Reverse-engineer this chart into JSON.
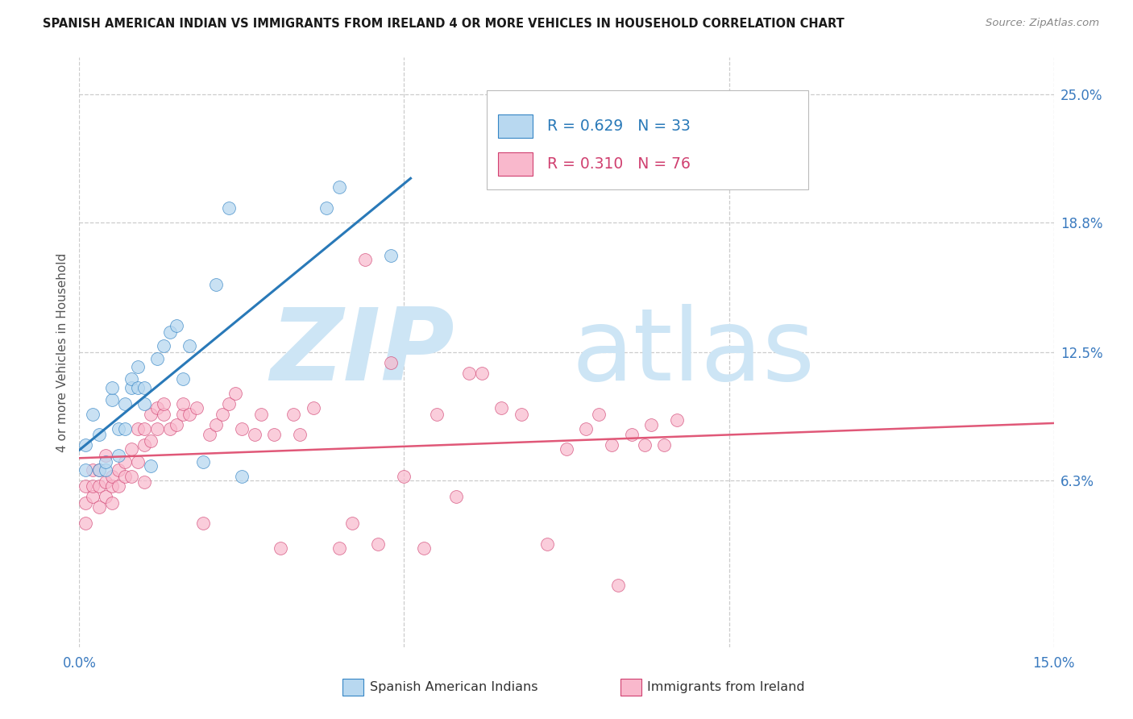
{
  "title": "SPANISH AMERICAN INDIAN VS IMMIGRANTS FROM IRELAND 4 OR MORE VEHICLES IN HOUSEHOLD CORRELATION CHART",
  "source": "Source: ZipAtlas.com",
  "ylabel": "4 or more Vehicles in Household",
  "legend_label1": "Spanish American Indians",
  "legend_label2": "Immigrants from Ireland",
  "R1": "0.629",
  "N1": "33",
  "R2": "0.310",
  "N2": "76",
  "xmin": 0.0,
  "xmax": 0.15,
  "ymin": -0.018,
  "ymax": 0.268,
  "color_blue_fill": "#b8d8f0",
  "color_blue_edge": "#3585c5",
  "color_pink_fill": "#f9b8cc",
  "color_pink_edge": "#d04070",
  "color_blue_line": "#2979b8",
  "color_pink_line": "#e05878",
  "watermark_zip_color": "#cde5f5",
  "watermark_atlas_color": "#c8e0f0",
  "ytick_positions": [
    0.063,
    0.125,
    0.188,
    0.25
  ],
  "ytick_labels": [
    "6.3%",
    "12.5%",
    "18.8%",
    "25.0%"
  ],
  "xtick_labels_left": "0.0%",
  "xtick_labels_right": "15.0%",
  "blue_x": [
    0.001,
    0.001,
    0.002,
    0.003,
    0.003,
    0.004,
    0.004,
    0.005,
    0.005,
    0.006,
    0.006,
    0.007,
    0.007,
    0.008,
    0.008,
    0.009,
    0.009,
    0.01,
    0.01,
    0.011,
    0.012,
    0.013,
    0.014,
    0.015,
    0.016,
    0.017,
    0.019,
    0.021,
    0.023,
    0.025,
    0.038,
    0.04,
    0.048
  ],
  "blue_y": [
    0.068,
    0.08,
    0.095,
    0.068,
    0.085,
    0.068,
    0.072,
    0.102,
    0.108,
    0.075,
    0.088,
    0.088,
    0.1,
    0.108,
    0.112,
    0.108,
    0.118,
    0.108,
    0.1,
    0.07,
    0.122,
    0.128,
    0.135,
    0.138,
    0.112,
    0.128,
    0.072,
    0.158,
    0.195,
    0.065,
    0.195,
    0.205,
    0.172
  ],
  "pink_x": [
    0.001,
    0.001,
    0.001,
    0.002,
    0.002,
    0.002,
    0.003,
    0.003,
    0.003,
    0.004,
    0.004,
    0.004,
    0.005,
    0.005,
    0.005,
    0.006,
    0.006,
    0.007,
    0.007,
    0.008,
    0.008,
    0.009,
    0.009,
    0.01,
    0.01,
    0.01,
    0.011,
    0.011,
    0.012,
    0.012,
    0.013,
    0.013,
    0.014,
    0.015,
    0.016,
    0.016,
    0.017,
    0.018,
    0.019,
    0.02,
    0.021,
    0.022,
    0.023,
    0.024,
    0.025,
    0.027,
    0.028,
    0.03,
    0.031,
    0.033,
    0.034,
    0.036,
    0.04,
    0.042,
    0.044,
    0.046,
    0.048,
    0.05,
    0.053,
    0.055,
    0.058,
    0.06,
    0.062,
    0.065,
    0.068,
    0.072,
    0.075,
    0.078,
    0.08,
    0.082,
    0.083,
    0.085,
    0.087,
    0.088,
    0.09,
    0.092
  ],
  "pink_y": [
    0.042,
    0.052,
    0.06,
    0.055,
    0.06,
    0.068,
    0.05,
    0.06,
    0.068,
    0.055,
    0.062,
    0.075,
    0.052,
    0.06,
    0.065,
    0.06,
    0.068,
    0.065,
    0.072,
    0.065,
    0.078,
    0.072,
    0.088,
    0.08,
    0.088,
    0.062,
    0.082,
    0.095,
    0.088,
    0.098,
    0.095,
    0.1,
    0.088,
    0.09,
    0.095,
    0.1,
    0.095,
    0.098,
    0.042,
    0.085,
    0.09,
    0.095,
    0.1,
    0.105,
    0.088,
    0.085,
    0.095,
    0.085,
    0.03,
    0.095,
    0.085,
    0.098,
    0.03,
    0.042,
    0.17,
    0.032,
    0.12,
    0.065,
    0.03,
    0.095,
    0.055,
    0.115,
    0.115,
    0.098,
    0.095,
    0.032,
    0.078,
    0.088,
    0.095,
    0.08,
    0.012,
    0.085,
    0.08,
    0.09,
    0.08,
    0.092
  ]
}
